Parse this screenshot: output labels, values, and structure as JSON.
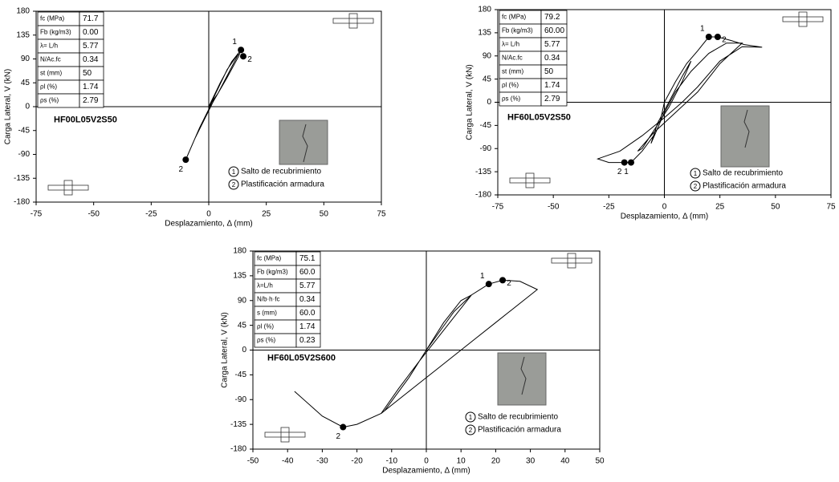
{
  "chart_data": [
    {
      "type": "line",
      "xlabel": "Desplazamiento, Δ (mm)",
      "ylabel": "Carga Lateral, V (kN)",
      "xlim": [
        -75,
        75
      ],
      "ylim": [
        -180,
        180
      ],
      "xticks": [
        -75,
        -50,
        -25,
        0,
        25,
        50,
        75
      ],
      "yticks": [
        -180,
        -135,
        -90,
        -45,
        0,
        45,
        90,
        135,
        180
      ],
      "specimen": "HF00L05V2S50",
      "parameters": [
        [
          "fc (MPa)",
          "71.7"
        ],
        [
          "Fb (kg/m3)",
          "0.00"
        ],
        [
          "λ= L/h",
          "5.77"
        ],
        [
          "N/Ac.fc",
          "0.34"
        ],
        [
          "st (mm)",
          "50"
        ],
        [
          "ρl (%)",
          "1.74"
        ],
        [
          "ρs (%)",
          "2.79"
        ]
      ],
      "series": [
        {
          "color": "#000000",
          "x": [
            0,
            5,
            10,
            14,
            13,
            8,
            2,
            -2,
            -6,
            -10,
            -9,
            -4,
            0,
            3,
            8,
            12,
            13,
            10,
            4,
            0
          ],
          "y": [
            0,
            45,
            85,
            107,
            95,
            55,
            10,
            -25,
            -60,
            -100,
            -90,
            -40,
            -5,
            25,
            70,
            95,
            100,
            75,
            25,
            0
          ]
        }
      ],
      "points": [
        {
          "label": "1",
          "x": 14,
          "y": 107
        },
        {
          "label": "2",
          "x": 15,
          "y": 95
        },
        {
          "label": "2",
          "x": -10,
          "y": -100
        }
      ],
      "notes": [
        {
          "number": "1",
          "text": "Salto de recubrimiento"
        },
        {
          "number": "2",
          "text": "Plastificación armadura"
        }
      ]
    },
    {
      "type": "line",
      "xlabel": "Desplazamiento, Δ (mm)",
      "ylabel": "Carga Lateral, V (kN)",
      "xlim": [
        -75,
        75
      ],
      "ylim": [
        -180,
        180
      ],
      "xticks": [
        -75,
        -50,
        -25,
        0,
        25,
        50,
        75
      ],
      "yticks": [
        -180,
        -135,
        -90,
        -45,
        0,
        45,
        90,
        135,
        180
      ],
      "specimen": "HF60L05V2S50",
      "parameters": [
        [
          "fc (MPa)",
          "79.2"
        ],
        [
          "Fb (kg/m3)",
          "60.00"
        ],
        [
          "λ= L/h",
          "5.77"
        ],
        [
          "N/Ac.fc",
          "0.34"
        ],
        [
          "st (mm)",
          "50"
        ],
        [
          "ρl (%)",
          "1.74"
        ],
        [
          "ρs (%)",
          "2.79"
        ]
      ],
      "series": [
        {
          "color": "#000000",
          "x": [
            0,
            5,
            10,
            15,
            20,
            24,
            30,
            36,
            44,
            35,
            25,
            15,
            8,
            0,
            -10,
            -20,
            -30,
            -25,
            -18,
            -15,
            -10,
            -4,
            0,
            5,
            12,
            20,
            28,
            35,
            25,
            15,
            5,
            -5,
            -12,
            -10,
            -4,
            2,
            8,
            12,
            8,
            2,
            -3,
            -6,
            -2,
            0
          ],
          "y": [
            0,
            40,
            75,
            100,
            127,
            127,
            120,
            112,
            107,
            108,
            80,
            30,
            0,
            -30,
            -65,
            -95,
            -110,
            -117,
            -117,
            -117,
            -95,
            -60,
            -20,
            20,
            60,
            95,
            115,
            115,
            75,
            20,
            -20,
            -60,
            -95,
            -90,
            -50,
            -10,
            40,
            80,
            50,
            0,
            -40,
            -80,
            -40,
            0
          ]
        }
      ],
      "points": [
        {
          "label": "1",
          "x": 20,
          "y": 127
        },
        {
          "label": "2",
          "x": 24,
          "y": 127
        },
        {
          "label": "2",
          "x": -18,
          "y": -117
        },
        {
          "label": "1",
          "x": -15,
          "y": -117
        }
      ],
      "notes": [
        {
          "number": "1",
          "text": "Salto de recubrimiento"
        },
        {
          "number": "2",
          "text": "Plastificación armadura"
        }
      ]
    },
    {
      "type": "line",
      "xlabel": "Desplazamiento, Δ (mm)",
      "ylabel": "Carga Lateral, V (kN)",
      "xlim": [
        -50,
        50
      ],
      "ylim": [
        -180,
        180
      ],
      "xticks": [
        -50,
        -40,
        -30,
        -20,
        -10,
        0,
        10,
        20,
        30,
        40,
        50
      ],
      "yticks": [
        -180,
        -135,
        -90,
        -45,
        0,
        45,
        90,
        135,
        180
      ],
      "specimen": "HF60L05V2S600",
      "parameters": [
        [
          "fc (MPa)",
          "75.1"
        ],
        [
          "Fb (kg/m3)",
          "60.0"
        ],
        [
          "λ=L/h",
          "5.77"
        ],
        [
          "N/b·h·fc",
          "0.34"
        ],
        [
          "s (mm)",
          "60.0"
        ],
        [
          "ρl (%)",
          "1.74"
        ],
        [
          "ρs (%)",
          "0.23"
        ]
      ],
      "series": [
        {
          "color": "#000000",
          "x": [
            0,
            4,
            8,
            13,
            18,
            22,
            27,
            32,
            28,
            20,
            14,
            10,
            4,
            -4,
            -13,
            -20,
            -24,
            -30,
            -38
          ],
          "y": [
            0,
            35,
            70,
            100,
            120,
            127,
            125,
            110,
            90,
            50,
            20,
            0,
            -30,
            -70,
            -115,
            -135,
            -140,
            -120,
            -75
          ]
        },
        {
          "color": "#000000",
          "x": [
            -13,
            -8,
            -2,
            3,
            8,
            13,
            10,
            5,
            0,
            -5,
            -12
          ],
          "y": [
            -115,
            -70,
            -20,
            20,
            60,
            100,
            90,
            50,
            0,
            -50,
            -110
          ]
        }
      ],
      "points": [
        {
          "label": "1",
          "x": 18,
          "y": 120
        },
        {
          "label": "2",
          "x": 22,
          "y": 127
        },
        {
          "label": "2",
          "x": -24,
          "y": -140
        }
      ],
      "notes": [
        {
          "number": "1",
          "text": "Salto de recubrimiento"
        },
        {
          "number": "2",
          "text": "Plastificación armadura"
        }
      ]
    }
  ]
}
